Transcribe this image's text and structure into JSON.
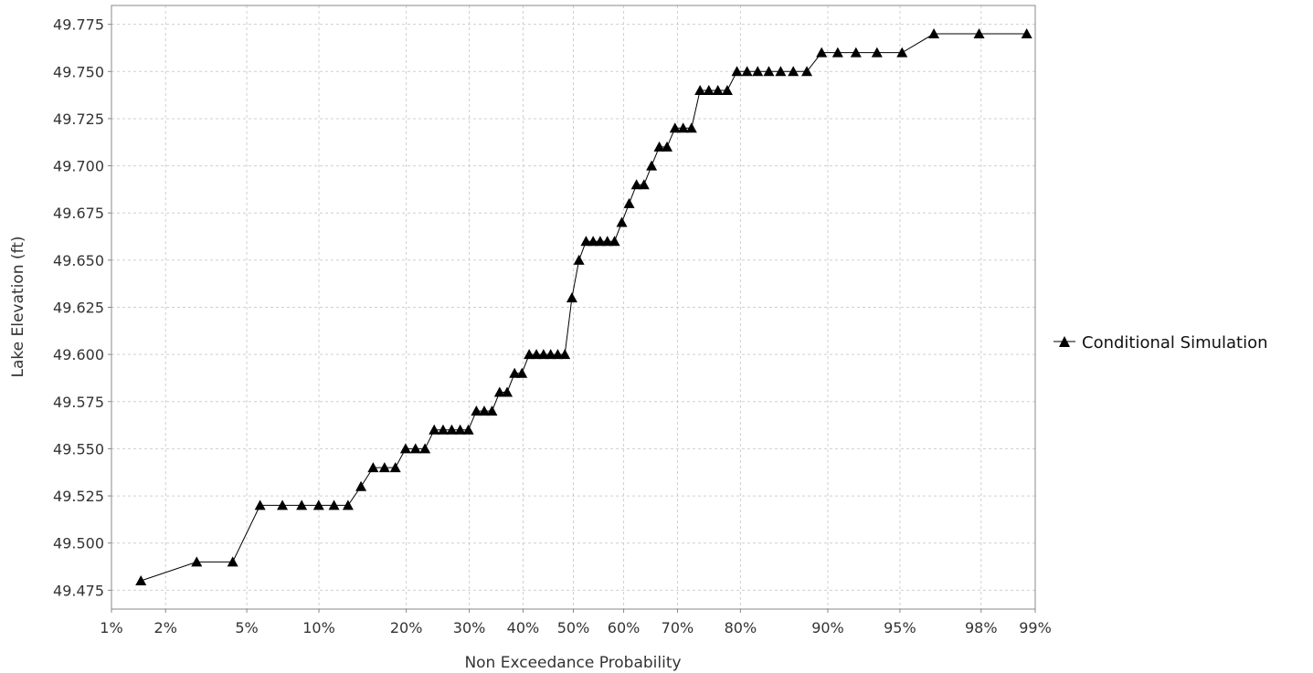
{
  "chart_data": {
    "type": "line",
    "xlabel": "Non Exceedance Probability",
    "ylabel": "Lake Elevation (ft)",
    "x_scale": "normal-probability",
    "x_ticks": [
      0.01,
      0.02,
      0.05,
      0.1,
      0.2,
      0.3,
      0.4,
      0.5,
      0.6,
      0.7,
      0.8,
      0.9,
      0.95,
      0.98,
      0.99
    ],
    "x_tick_labels": [
      "1%",
      "2%",
      "5%",
      "10%",
      "20%",
      "30%",
      "40%",
      "50%",
      "60%",
      "70%",
      "80%",
      "90%",
      "95%",
      "98%",
      "99%"
    ],
    "y_ticks": [
      49.475,
      49.5,
      49.525,
      49.55,
      49.575,
      49.6,
      49.625,
      49.65,
      49.675,
      49.7,
      49.725,
      49.75,
      49.775
    ],
    "y_tick_labels": [
      "49.475",
      "49.500",
      "49.525",
      "49.550",
      "49.575",
      "49.600",
      "49.625",
      "49.650",
      "49.675",
      "49.700",
      "49.725",
      "49.750",
      "49.775"
    ],
    "xlim": [
      0.01,
      0.99
    ],
    "ylim": [
      49.465,
      49.785
    ],
    "grid": true,
    "legend_position": "right",
    "series": [
      {
        "name": "Conditional Simulation",
        "marker": "triangle",
        "color": "#000000",
        "points": [
          [
            0.0147,
            49.48
          ],
          [
            0.0289,
            49.49
          ],
          [
            0.0431,
            49.49
          ],
          [
            0.0573,
            49.52
          ],
          [
            0.0714,
            49.52
          ],
          [
            0.0856,
            49.52
          ],
          [
            0.0998,
            49.52
          ],
          [
            0.114,
            49.52
          ],
          [
            0.1282,
            49.52
          ],
          [
            0.1424,
            49.53
          ],
          [
            0.1566,
            49.54
          ],
          [
            0.1708,
            49.54
          ],
          [
            0.185,
            49.54
          ],
          [
            0.1991,
            49.55
          ],
          [
            0.2133,
            49.55
          ],
          [
            0.2275,
            49.55
          ],
          [
            0.2417,
            49.56
          ],
          [
            0.2559,
            49.56
          ],
          [
            0.2701,
            49.56
          ],
          [
            0.2843,
            49.56
          ],
          [
            0.2985,
            49.56
          ],
          [
            0.3126,
            49.57
          ],
          [
            0.3268,
            49.57
          ],
          [
            0.341,
            49.57
          ],
          [
            0.3552,
            49.58
          ],
          [
            0.3694,
            49.58
          ],
          [
            0.3836,
            49.59
          ],
          [
            0.3978,
            49.59
          ],
          [
            0.412,
            49.6
          ],
          [
            0.4262,
            49.6
          ],
          [
            0.4403,
            49.6
          ],
          [
            0.4545,
            49.6
          ],
          [
            0.4687,
            49.6
          ],
          [
            0.4829,
            49.6
          ],
          [
            0.4971,
            49.63
          ],
          [
            0.5113,
            49.65
          ],
          [
            0.5255,
            49.66
          ],
          [
            0.5397,
            49.66
          ],
          [
            0.5538,
            49.66
          ],
          [
            0.568,
            49.66
          ],
          [
            0.5822,
            49.66
          ],
          [
            0.5964,
            49.67
          ],
          [
            0.6106,
            49.68
          ],
          [
            0.6248,
            49.69
          ],
          [
            0.639,
            49.69
          ],
          [
            0.6532,
            49.7
          ],
          [
            0.6674,
            49.71
          ],
          [
            0.6815,
            49.71
          ],
          [
            0.6957,
            49.72
          ],
          [
            0.7099,
            49.72
          ],
          [
            0.7241,
            49.72
          ],
          [
            0.7383,
            49.74
          ],
          [
            0.7525,
            49.74
          ],
          [
            0.7667,
            49.74
          ],
          [
            0.7809,
            49.74
          ],
          [
            0.795,
            49.75
          ],
          [
            0.8092,
            49.75
          ],
          [
            0.8234,
            49.75
          ],
          [
            0.8376,
            49.75
          ],
          [
            0.8518,
            49.75
          ],
          [
            0.866,
            49.75
          ],
          [
            0.8802,
            49.75
          ],
          [
            0.8944,
            49.76
          ],
          [
            0.9085,
            49.76
          ],
          [
            0.9227,
            49.76
          ],
          [
            0.9369,
            49.76
          ],
          [
            0.9511,
            49.76
          ],
          [
            0.9653,
            49.77
          ],
          [
            0.9795,
            49.77
          ],
          [
            0.9888,
            49.77
          ]
        ]
      }
    ]
  }
}
